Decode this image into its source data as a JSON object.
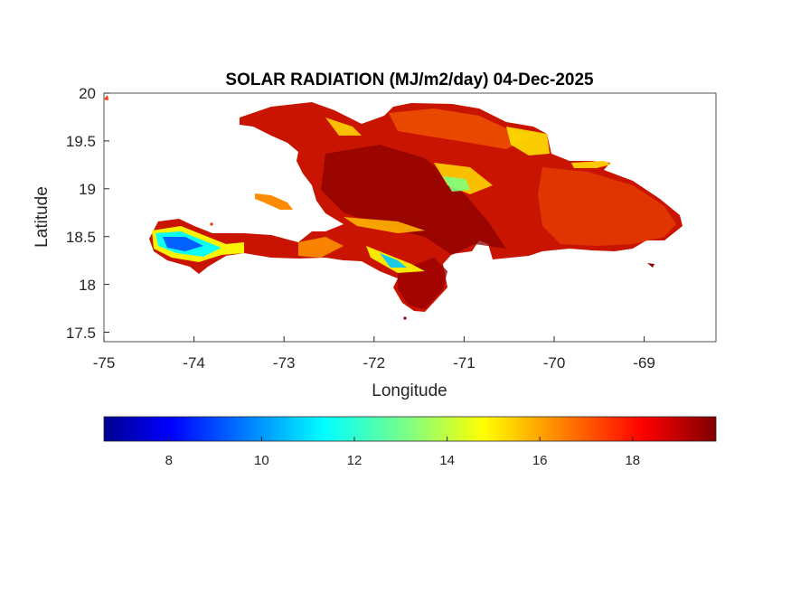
{
  "figure": {
    "title": "SOLAR RADIATION (MJ/m2/day) 04-Dec-2025",
    "xlabel": "Longitude",
    "ylabel": "Latitude"
  },
  "axes": {
    "xlim": [
      -75,
      -68.2
    ],
    "ylim": [
      17.4,
      20
    ],
    "xticks": [
      "-75",
      "-74",
      "-73",
      "-72",
      "-71",
      "-70",
      "-69"
    ],
    "yticks": [
      "20",
      "19.5",
      "19",
      "18.5",
      "18",
      "17.5"
    ]
  },
  "colorbar": {
    "colormap": "jet",
    "range": [
      6.6,
      19.8
    ],
    "ticks": [
      "8",
      "10",
      "12",
      "14",
      "16",
      "18"
    ],
    "colors": [
      "#00008f",
      "#0000ff",
      "#0080ff",
      "#00ffff",
      "#80ff80",
      "#ffff00",
      "#ff8000",
      "#ff0000",
      "#800000"
    ]
  },
  "map": {
    "region": "Hispaniola",
    "dominant_color": "#c81400",
    "land_colors": [
      "#8b0000",
      "#b40a00",
      "#d21e00",
      "#e83200",
      "#ff5000",
      "#ff9600",
      "#ffd200",
      "#ffff00",
      "#80ff80",
      "#00ffff",
      "#0080ff"
    ]
  }
}
